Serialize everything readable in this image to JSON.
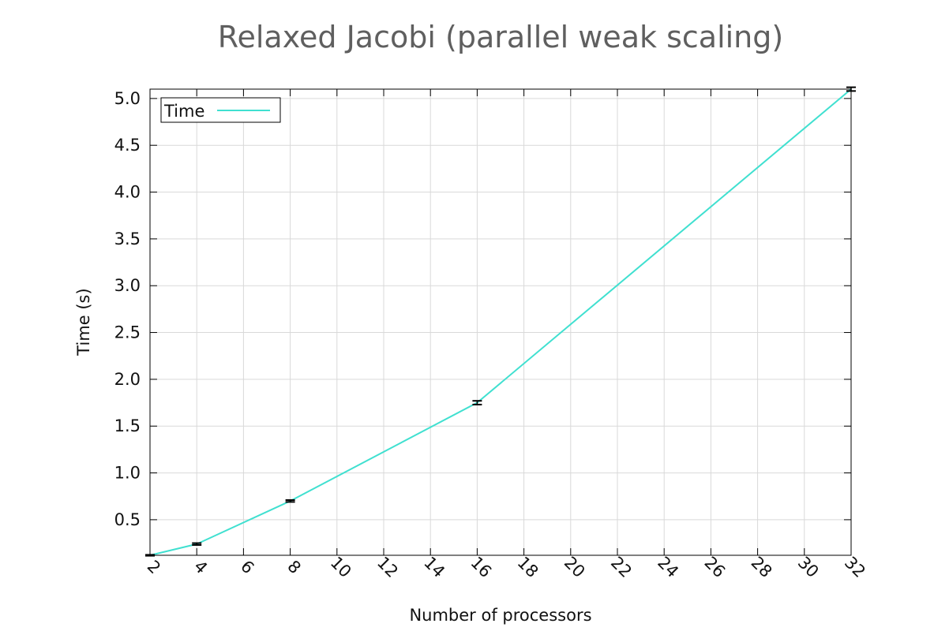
{
  "chart_data": {
    "type": "line",
    "title": "Relaxed Jacobi (parallel weak scaling)",
    "xlabel": "Number of processors",
    "ylabel": "Time (s)",
    "xlim": [
      2,
      32
    ],
    "ylim": [
      0.12,
      5.1
    ],
    "x_ticks": [
      2,
      4,
      6,
      8,
      10,
      12,
      14,
      16,
      18,
      20,
      22,
      24,
      26,
      28,
      30,
      32
    ],
    "y_ticks": [
      0.5,
      1.0,
      1.5,
      2.0,
      2.5,
      3.0,
      3.5,
      4.0,
      4.5,
      5.0
    ],
    "y_tick_labels": [
      "0.5",
      "1.0",
      "1.5",
      "2.0",
      "2.5",
      "3.0",
      "3.5",
      "4.0",
      "4.5",
      "5.0"
    ],
    "grid": true,
    "legend_position": "top-left",
    "series": [
      {
        "name": "Time",
        "color": "#40e0d0",
        "x": [
          2,
          4,
          8,
          16,
          32
        ],
        "y": [
          0.12,
          0.24,
          0.7,
          1.75,
          5.1
        ],
        "error": [
          0.005,
          0.01,
          0.01,
          0.02,
          0.02
        ]
      }
    ]
  }
}
